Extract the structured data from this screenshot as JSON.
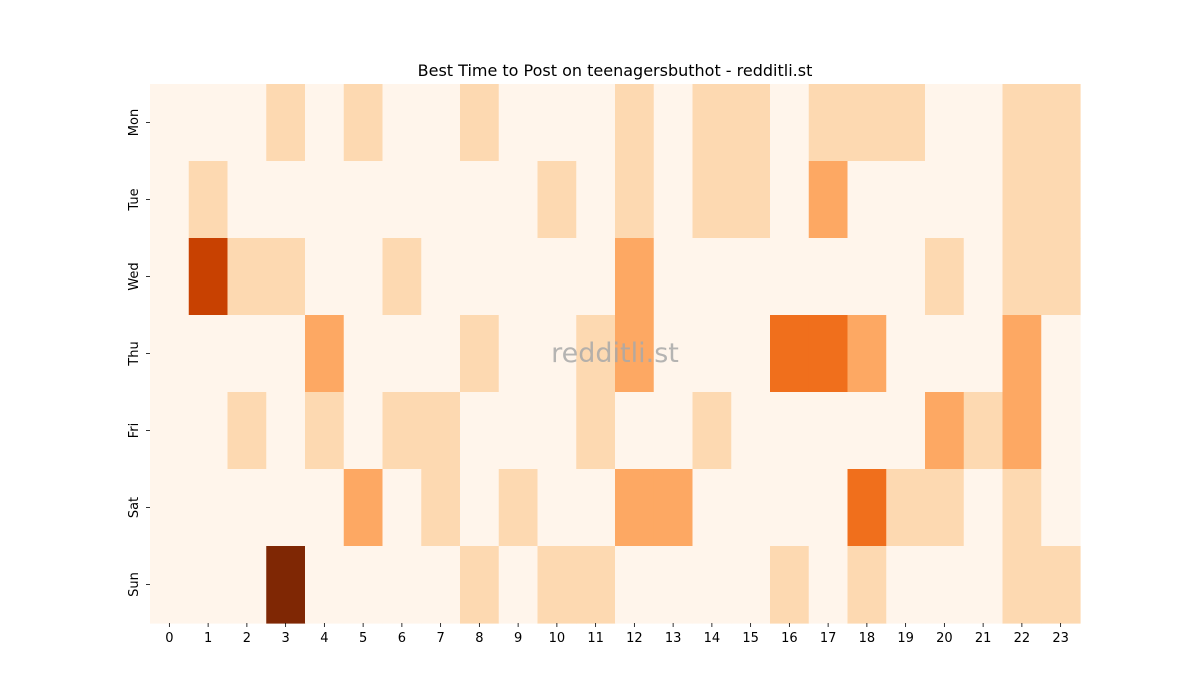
{
  "chart_data": {
    "type": "heatmap",
    "title": "Best Time to Post on teenagersbuthot - redditli.st",
    "watermark": "redditli.st",
    "x_labels": [
      "0",
      "1",
      "2",
      "3",
      "4",
      "5",
      "6",
      "7",
      "8",
      "9",
      "10",
      "11",
      "12",
      "13",
      "14",
      "15",
      "16",
      "17",
      "18",
      "19",
      "20",
      "21",
      "22",
      "23"
    ],
    "y_labels": [
      "Mon",
      "Tue",
      "Wed",
      "Thu",
      "Fri",
      "Sat",
      "Sun"
    ],
    "values": [
      [
        0,
        0,
        0,
        1,
        0,
        1,
        0,
        0,
        1,
        0,
        0,
        0,
        1,
        0,
        1,
        1,
        0,
        1,
        1,
        1,
        0,
        0,
        1,
        1
      ],
      [
        0,
        1,
        0,
        0,
        0,
        0,
        0,
        0,
        0,
        0,
        1,
        0,
        1,
        0,
        1,
        1,
        0,
        2,
        0,
        0,
        0,
        0,
        1,
        1
      ],
      [
        0,
        4,
        1,
        1,
        0,
        0,
        1,
        0,
        0,
        0,
        0,
        0,
        2,
        0,
        0,
        0,
        0,
        0,
        0,
        0,
        1,
        0,
        1,
        1
      ],
      [
        0,
        0,
        0,
        0,
        2,
        0,
        0,
        0,
        1,
        0,
        0,
        1,
        2,
        0,
        0,
        0,
        3,
        3,
        2,
        0,
        0,
        0,
        2,
        0
      ],
      [
        0,
        0,
        1,
        0,
        1,
        0,
        1,
        1,
        0,
        0,
        0,
        1,
        0,
        0,
        1,
        0,
        0,
        0,
        0,
        0,
        2,
        1,
        2,
        0
      ],
      [
        0,
        0,
        0,
        0,
        0,
        2,
        0,
        1,
        0,
        1,
        0,
        0,
        2,
        2,
        0,
        0,
        0,
        0,
        3,
        1,
        1,
        0,
        1,
        0
      ],
      [
        0,
        0,
        0,
        5,
        0,
        0,
        0,
        0,
        1,
        0,
        1,
        1,
        0,
        0,
        0,
        0,
        1,
        0,
        1,
        0,
        0,
        0,
        1,
        1
      ]
    ],
    "colorscale": [
      "#fff5eb",
      "#fdd9b1",
      "#fda863",
      "#f06f1c",
      "#c84101",
      "#7f2704"
    ],
    "legend": "none"
  }
}
